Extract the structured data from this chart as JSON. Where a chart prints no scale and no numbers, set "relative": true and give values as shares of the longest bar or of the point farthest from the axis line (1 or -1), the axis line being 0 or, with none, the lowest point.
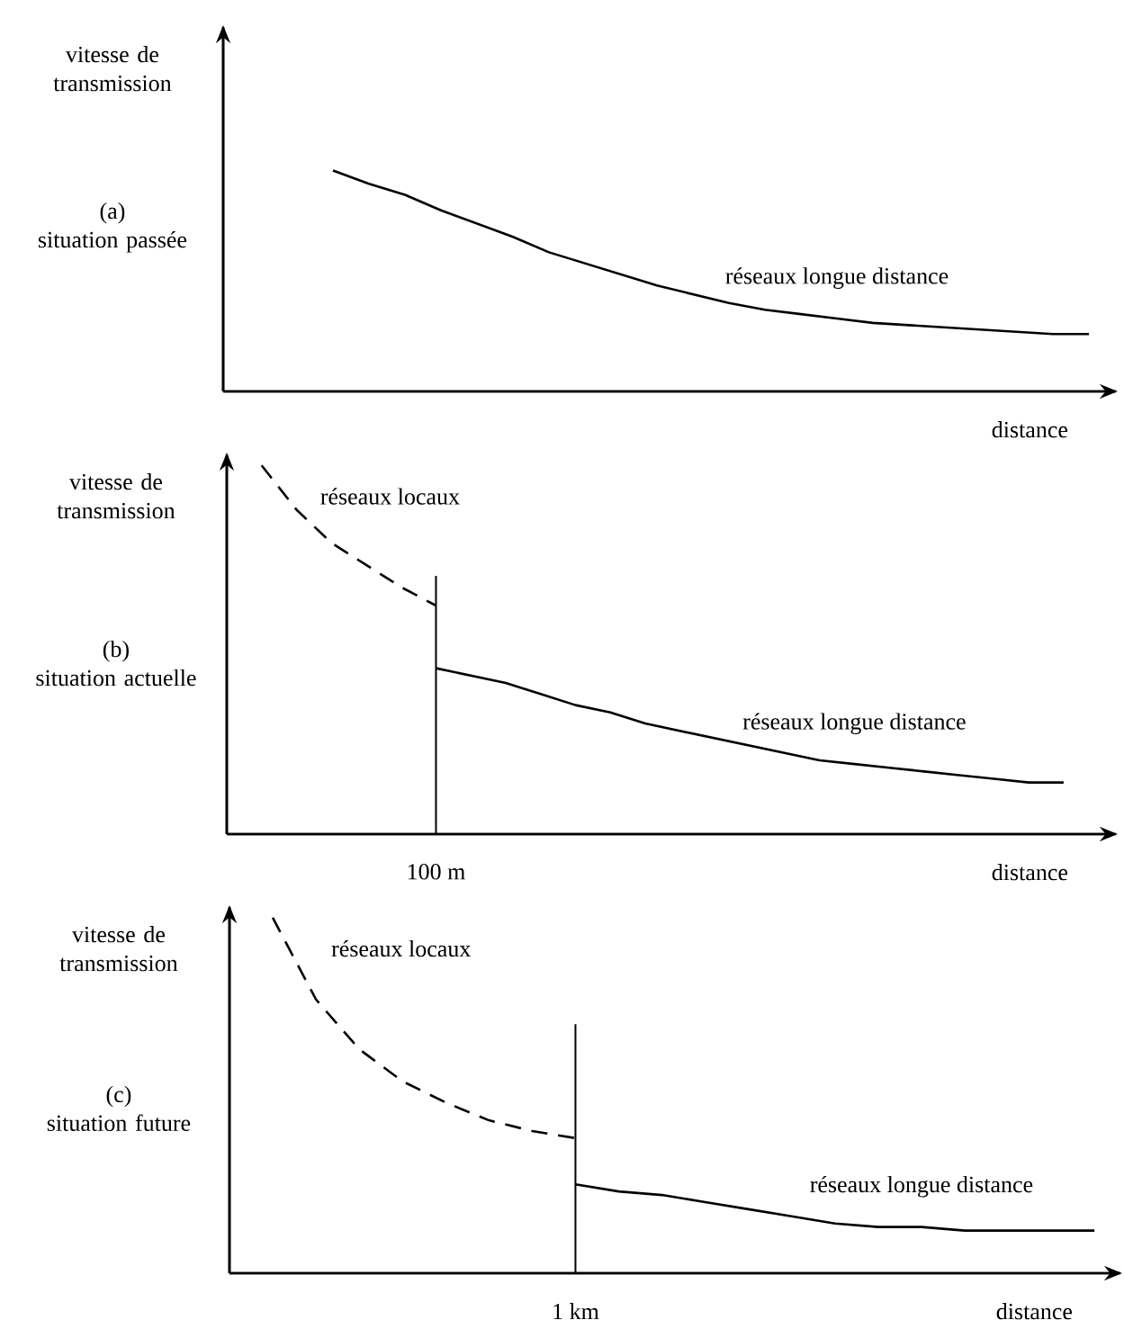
{
  "chart_data": [
    {
      "type": "line",
      "relative": true,
      "ylabel": "vitesse de transmission",
      "xlabel": "distance",
      "annotations": [
        "(a)",
        "situation passée"
      ],
      "categories": [
        null,
        null,
        null,
        null,
        null,
        null,
        null,
        null,
        null,
        null,
        null,
        null,
        null,
        null,
        null,
        null,
        null,
        null,
        null,
        null,
        null,
        null,
        null,
        null,
        null
      ],
      "series": [
        {
          "name": "réseaux longue distance",
          "color": "#000000",
          "line_style": "solid",
          "values": [
            null,
            null,
            null,
            1.0,
            0.94,
            0.89,
            0.82,
            0.76,
            0.7,
            0.63,
            0.58,
            0.53,
            0.48,
            0.44,
            0.4,
            0.37,
            0.35,
            0.33,
            0.31,
            0.3,
            0.29,
            0.28,
            0.27,
            0.26,
            0.26
          ]
        }
      ]
    },
    {
      "type": "line",
      "relative": true,
      "ylabel": "vitesse de transmission",
      "xlabel": "distance",
      "annotations": [
        "(b)",
        "situation actuelle",
        "100 m"
      ],
      "categories": [
        null,
        null,
        null,
        null,
        null,
        null,
        null,
        null,
        null,
        null,
        null,
        null,
        null,
        null,
        null,
        null,
        null,
        null,
        null,
        null,
        null,
        null,
        null,
        null,
        null
      ],
      "series": [
        {
          "name": "réseaux locaux",
          "color": "#000000",
          "line_style": "dashed",
          "values": [
            null,
            1.0,
            0.88,
            0.79,
            0.73,
            0.67,
            0.62,
            null,
            null,
            null,
            null,
            null,
            null,
            null,
            null,
            null,
            null,
            null,
            null,
            null,
            null,
            null,
            null,
            null,
            null
          ]
        },
        {
          "name": "réseaux longue distance",
          "color": "#000000",
          "line_style": "solid",
          "values": [
            null,
            null,
            null,
            null,
            null,
            null,
            0.45,
            0.43,
            0.41,
            0.38,
            0.35,
            0.33,
            0.3,
            0.28,
            0.26,
            0.24,
            0.22,
            0.2,
            0.19,
            0.18,
            0.17,
            0.16,
            0.15,
            0.14,
            0.14
          ]
        }
      ]
    },
    {
      "type": "line",
      "relative": true,
      "ylabel": "vitesse de transmission",
      "xlabel": "distance",
      "annotations": [
        "(c)",
        "situation future",
        "1 km"
      ],
      "categories": [
        null,
        null,
        null,
        null,
        null,
        null,
        null,
        null,
        null,
        null,
        null,
        null,
        null,
        null,
        null,
        null,
        null,
        null,
        null,
        null,
        null
      ],
      "series": [
        {
          "name": "réseaux locaux",
          "color": "#000000",
          "line_style": "dashed",
          "values": [
            null,
            1.0,
            0.77,
            0.63,
            0.54,
            0.48,
            0.43,
            0.4,
            0.38,
            null,
            null,
            null,
            null,
            null,
            null,
            null,
            null,
            null,
            null,
            null,
            null
          ]
        },
        {
          "name": "réseaux longue distance",
          "color": "#000000",
          "line_style": "solid",
          "values": [
            null,
            null,
            null,
            null,
            null,
            null,
            null,
            null,
            0.25,
            0.23,
            0.22,
            0.2,
            0.18,
            0.16,
            0.14,
            0.13,
            0.13,
            0.12,
            0.12,
            0.12,
            0.12
          ]
        }
      ]
    }
  ]
}
